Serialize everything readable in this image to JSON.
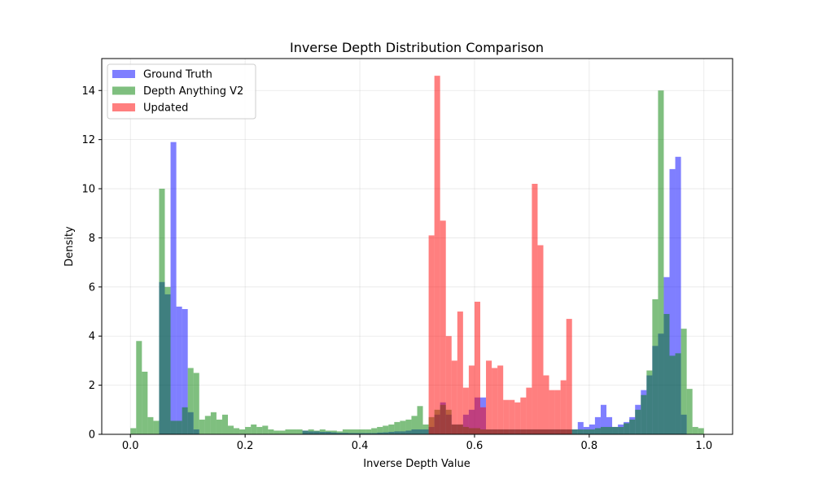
{
  "chart_data": {
    "type": "histogram",
    "title": "Inverse Depth Distribution Comparison",
    "xlabel": "Inverse Depth Value",
    "ylabel": "Density",
    "xlim": [
      -0.05,
      1.05
    ],
    "ylim": [
      0,
      15.3
    ],
    "x_ticks": [
      "0.0",
      "0.2",
      "0.4",
      "0.6",
      "0.8",
      "1.0"
    ],
    "y_ticks": [
      "0",
      "2",
      "4",
      "6",
      "8",
      "10",
      "12",
      "14"
    ],
    "grid": true,
    "legend_position": "upper-left",
    "bin_width": 0.01,
    "series": [
      {
        "name": "Ground Truth",
        "color": "#0000ff",
        "alpha": 0.5,
        "bins": [
          [
            0.05,
            6.2
          ],
          [
            0.06,
            5.7
          ],
          [
            0.07,
            11.9
          ],
          [
            0.08,
            5.2
          ],
          [
            0.09,
            5.1
          ],
          [
            0.1,
            0.9
          ],
          [
            0.11,
            0.2
          ],
          [
            0.3,
            0.15
          ],
          [
            0.31,
            0.12
          ],
          [
            0.32,
            0.12
          ],
          [
            0.33,
            0.1
          ],
          [
            0.34,
            0.1
          ],
          [
            0.35,
            0.08
          ],
          [
            0.36,
            0.06
          ],
          [
            0.37,
            0.06
          ],
          [
            0.38,
            0.05
          ],
          [
            0.39,
            0.05
          ],
          [
            0.4,
            0.05
          ],
          [
            0.41,
            0.05
          ],
          [
            0.42,
            0.05
          ],
          [
            0.43,
            0.07
          ],
          [
            0.44,
            0.08
          ],
          [
            0.45,
            0.1
          ],
          [
            0.46,
            0.12
          ],
          [
            0.47,
            0.12
          ],
          [
            0.48,
            0.15
          ],
          [
            0.49,
            0.2
          ],
          [
            0.5,
            0.2
          ],
          [
            0.51,
            0.2
          ],
          [
            0.52,
            0.3
          ],
          [
            0.53,
            0.8
          ],
          [
            0.54,
            1.3
          ],
          [
            0.55,
            0.8
          ],
          [
            0.56,
            0.4
          ],
          [
            0.57,
            0.4
          ],
          [
            0.58,
            0.8
          ],
          [
            0.59,
            1.0
          ],
          [
            0.6,
            1.5
          ],
          [
            0.61,
            1.5
          ],
          [
            0.62,
            0.2
          ],
          [
            0.63,
            0.2
          ],
          [
            0.64,
            0.2
          ],
          [
            0.65,
            0.2
          ],
          [
            0.66,
            0.2
          ],
          [
            0.67,
            0.2
          ],
          [
            0.68,
            0.2
          ],
          [
            0.69,
            0.2
          ],
          [
            0.7,
            0.2
          ],
          [
            0.71,
            0.2
          ],
          [
            0.72,
            0.2
          ],
          [
            0.73,
            0.2
          ],
          [
            0.74,
            0.2
          ],
          [
            0.75,
            0.2
          ],
          [
            0.76,
            0.2
          ],
          [
            0.77,
            0.2
          ],
          [
            0.78,
            0.5
          ],
          [
            0.79,
            0.3
          ],
          [
            0.8,
            0.4
          ],
          [
            0.81,
            0.7
          ],
          [
            0.82,
            1.2
          ],
          [
            0.83,
            0.7
          ],
          [
            0.84,
            0.3
          ],
          [
            0.85,
            0.4
          ],
          [
            0.86,
            0.5
          ],
          [
            0.87,
            0.7
          ],
          [
            0.88,
            1.2
          ],
          [
            0.89,
            1.8
          ],
          [
            0.9,
            2.4
          ],
          [
            0.91,
            3.6
          ],
          [
            0.92,
            4.1
          ],
          [
            0.93,
            6.4
          ],
          [
            0.94,
            10.8
          ],
          [
            0.95,
            11.3
          ],
          [
            0.96,
            0.8
          ]
        ]
      },
      {
        "name": "Depth Anything V2",
        "color": "#008000",
        "alpha": 0.5,
        "bins": [
          [
            0.0,
            0.25
          ],
          [
            0.01,
            3.8
          ],
          [
            0.02,
            2.55
          ],
          [
            0.03,
            0.7
          ],
          [
            0.04,
            0.55
          ],
          [
            0.05,
            10.0
          ],
          [
            0.06,
            6.0
          ],
          [
            0.07,
            0.55
          ],
          [
            0.08,
            0.55
          ],
          [
            0.09,
            1.1
          ],
          [
            0.1,
            2.7
          ],
          [
            0.11,
            2.5
          ],
          [
            0.12,
            0.6
          ],
          [
            0.13,
            0.75
          ],
          [
            0.14,
            0.9
          ],
          [
            0.15,
            0.6
          ],
          [
            0.16,
            0.8
          ],
          [
            0.17,
            0.35
          ],
          [
            0.18,
            0.25
          ],
          [
            0.19,
            0.2
          ],
          [
            0.2,
            0.3
          ],
          [
            0.21,
            0.4
          ],
          [
            0.22,
            0.3
          ],
          [
            0.23,
            0.35
          ],
          [
            0.24,
            0.2
          ],
          [
            0.25,
            0.15
          ],
          [
            0.26,
            0.15
          ],
          [
            0.27,
            0.2
          ],
          [
            0.28,
            0.2
          ],
          [
            0.29,
            0.2
          ],
          [
            0.3,
            0.15
          ],
          [
            0.31,
            0.2
          ],
          [
            0.32,
            0.15
          ],
          [
            0.33,
            0.2
          ],
          [
            0.34,
            0.15
          ],
          [
            0.35,
            0.15
          ],
          [
            0.36,
            0.12
          ],
          [
            0.37,
            0.2
          ],
          [
            0.38,
            0.2
          ],
          [
            0.39,
            0.2
          ],
          [
            0.4,
            0.2
          ],
          [
            0.41,
            0.2
          ],
          [
            0.42,
            0.25
          ],
          [
            0.43,
            0.3
          ],
          [
            0.44,
            0.35
          ],
          [
            0.45,
            0.4
          ],
          [
            0.46,
            0.5
          ],
          [
            0.47,
            0.55
          ],
          [
            0.48,
            0.6
          ],
          [
            0.49,
            0.75
          ],
          [
            0.5,
            1.15
          ],
          [
            0.51,
            0.4
          ],
          [
            0.52,
            0.7
          ],
          [
            0.53,
            1.0
          ],
          [
            0.54,
            1.2
          ],
          [
            0.55,
            1.0
          ],
          [
            0.56,
            0.4
          ],
          [
            0.57,
            0.4
          ],
          [
            0.58,
            0.3
          ],
          [
            0.59,
            0.25
          ],
          [
            0.6,
            0.25
          ],
          [
            0.61,
            0.2
          ],
          [
            0.62,
            0.2
          ],
          [
            0.63,
            0.2
          ],
          [
            0.64,
            0.2
          ],
          [
            0.65,
            0.2
          ],
          [
            0.66,
            0.2
          ],
          [
            0.67,
            0.2
          ],
          [
            0.68,
            0.2
          ],
          [
            0.69,
            0.2
          ],
          [
            0.7,
            0.2
          ],
          [
            0.71,
            0.2
          ],
          [
            0.72,
            0.2
          ],
          [
            0.73,
            0.2
          ],
          [
            0.74,
            0.2
          ],
          [
            0.75,
            0.2
          ],
          [
            0.76,
            0.2
          ],
          [
            0.77,
            0.2
          ],
          [
            0.78,
            0.2
          ],
          [
            0.79,
            0.2
          ],
          [
            0.8,
            0.2
          ],
          [
            0.81,
            0.25
          ],
          [
            0.82,
            0.3
          ],
          [
            0.83,
            0.3
          ],
          [
            0.84,
            0.3
          ],
          [
            0.85,
            0.3
          ],
          [
            0.86,
            0.45
          ],
          [
            0.87,
            0.6
          ],
          [
            0.88,
            1.0
          ],
          [
            0.89,
            1.6
          ],
          [
            0.9,
            2.6
          ],
          [
            0.91,
            5.5
          ],
          [
            0.92,
            14.0
          ],
          [
            0.93,
            4.9
          ],
          [
            0.94,
            3.2
          ],
          [
            0.95,
            3.3
          ],
          [
            0.96,
            4.3
          ],
          [
            0.97,
            1.85
          ],
          [
            0.98,
            0.3
          ],
          [
            0.99,
            0.25
          ]
        ]
      },
      {
        "name": "Updated",
        "color": "#ff0000",
        "alpha": 0.5,
        "bins": [
          [
            0.52,
            8.1
          ],
          [
            0.53,
            14.6
          ],
          [
            0.54,
            8.7
          ],
          [
            0.55,
            4.0
          ],
          [
            0.56,
            3.0
          ],
          [
            0.57,
            5.0
          ],
          [
            0.58,
            1.9
          ],
          [
            0.59,
            2.8
          ],
          [
            0.6,
            5.4
          ],
          [
            0.61,
            1.1
          ],
          [
            0.62,
            3.0
          ],
          [
            0.63,
            2.7
          ],
          [
            0.64,
            2.8
          ],
          [
            0.65,
            1.4
          ],
          [
            0.66,
            1.4
          ],
          [
            0.67,
            1.3
          ],
          [
            0.68,
            1.5
          ],
          [
            0.69,
            1.9
          ],
          [
            0.7,
            10.2
          ],
          [
            0.71,
            7.7
          ],
          [
            0.72,
            2.4
          ],
          [
            0.73,
            1.8
          ],
          [
            0.74,
            1.8
          ],
          [
            0.75,
            2.2
          ],
          [
            0.76,
            4.7
          ]
        ]
      }
    ]
  }
}
